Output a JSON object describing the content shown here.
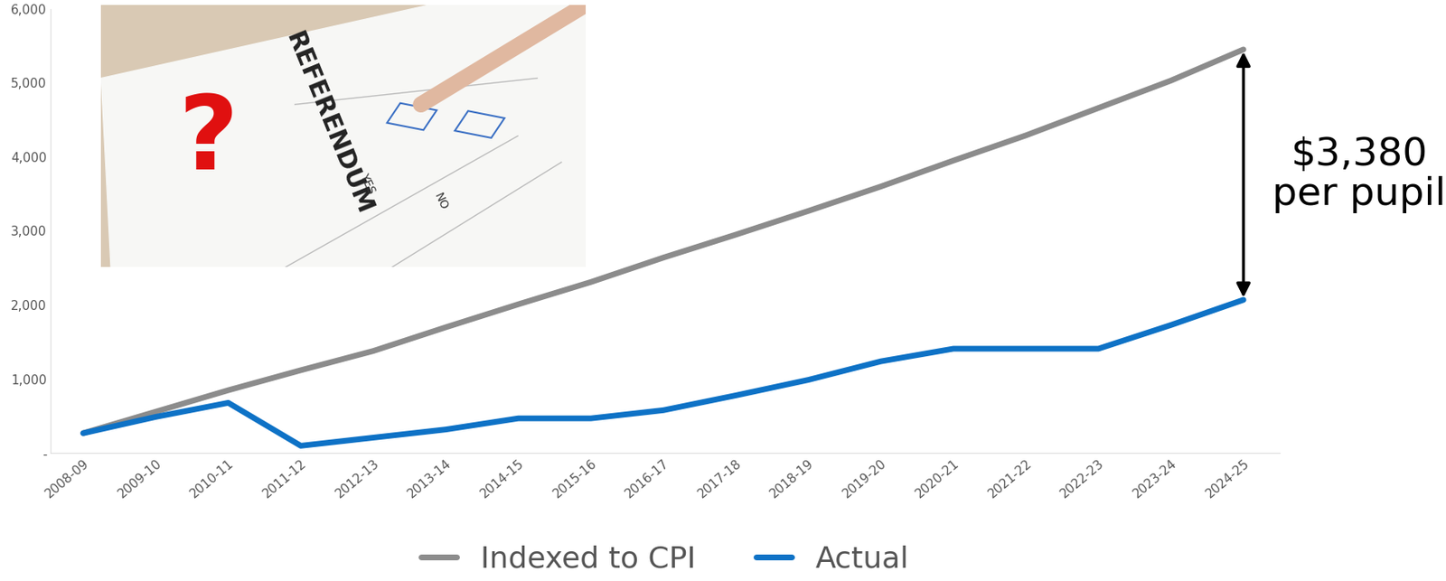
{
  "chart_data": {
    "type": "line",
    "categories": [
      "2008-09",
      "2009-10",
      "2010-11",
      "2011-12",
      "2012-13",
      "2013-14",
      "2014-15",
      "2015-16",
      "2016-17",
      "2017-18",
      "2018-19",
      "2019-20",
      "2020-21",
      "2021-22",
      "2022-23",
      "2023-24",
      "2024-25"
    ],
    "series": [
      {
        "name": "Indexed to CPI",
        "color": "#8c8c8c",
        "values": [
          270,
          560,
          850,
          1120,
          1380,
          1700,
          2010,
          2310,
          2640,
          2950,
          3270,
          3600,
          3950,
          4290,
          4660,
          5030,
          5450
        ]
      },
      {
        "name": "Actual",
        "color": "#0e72c6",
        "values": [
          270,
          490,
          680,
          100,
          210,
          320,
          470,
          470,
          580,
          780,
          990,
          1240,
          1410,
          1410,
          1410,
          1730,
          2070
        ]
      }
    ],
    "ylim": [
      0,
      6000
    ],
    "yticks": [
      {
        "value": 0,
        "label": "-"
      },
      {
        "value": 1000,
        "label": "1,000"
      },
      {
        "value": 2000,
        "label": "2,000"
      },
      {
        "value": 3000,
        "label": "3,000"
      },
      {
        "value": 4000,
        "label": "4,000"
      },
      {
        "value": 5000,
        "label": "5,000"
      },
      {
        "value": 6000,
        "label": "6,000"
      }
    ],
    "grid": false,
    "legend": "lower center",
    "annotations": [
      {
        "text": "$3,380\nper pupil"
      },
      {
        "text": "?"
      },
      {
        "text": "REFERENDUM"
      },
      {
        "text": "YES"
      },
      {
        "text": "NO"
      }
    ]
  }
}
